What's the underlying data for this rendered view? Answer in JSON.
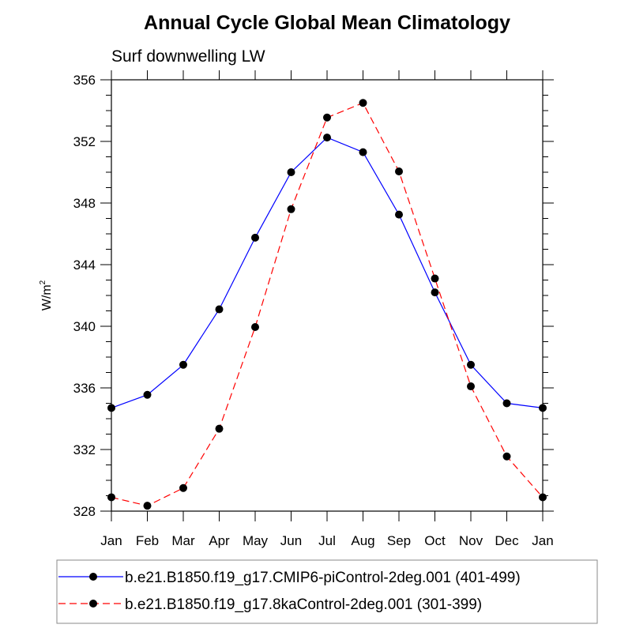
{
  "chart_data": {
    "type": "line",
    "title": "Annual Cycle Global Mean Climatology",
    "subtitle": "Surf downwelling LW",
    "xlabel": "",
    "ylabel": "W/m",
    "ylabel_superscript": "2",
    "categories": [
      "Jan",
      "Feb",
      "Mar",
      "Apr",
      "May",
      "Jun",
      "Jul",
      "Aug",
      "Sep",
      "Oct",
      "Nov",
      "Dec",
      "Jan"
    ],
    "ylim": [
      328,
      356
    ],
    "yticks": [
      328,
      332,
      336,
      340,
      344,
      348,
      352,
      356
    ],
    "ytick_labels": [
      "328",
      "332",
      "336",
      "340",
      "344",
      "348",
      "352",
      "356"
    ],
    "y_minor_step": 1,
    "grid": false,
    "legend_position": "bottom",
    "series": [
      {
        "name": "b.e21.B1850.f19_g17.CMIP6-piControl-2deg.001 (401-499)",
        "color": "#0000ff",
        "dash": "solid",
        "marker": "filled-circle",
        "values": [
          334.7,
          335.55,
          337.5,
          341.1,
          345.75,
          350.0,
          352.25,
          351.3,
          347.25,
          342.2,
          337.5,
          335.0,
          334.7
        ]
      },
      {
        "name": "b.e21.B1850.f19_g17.8kaControl-2deg.001 (301-399)",
        "color": "#ff0000",
        "dash": "dashed",
        "marker": "filled-circle",
        "values": [
          328.9,
          328.35,
          329.5,
          333.35,
          339.95,
          347.6,
          353.55,
          354.5,
          350.05,
          343.1,
          336.1,
          331.55,
          328.9
        ]
      }
    ]
  }
}
